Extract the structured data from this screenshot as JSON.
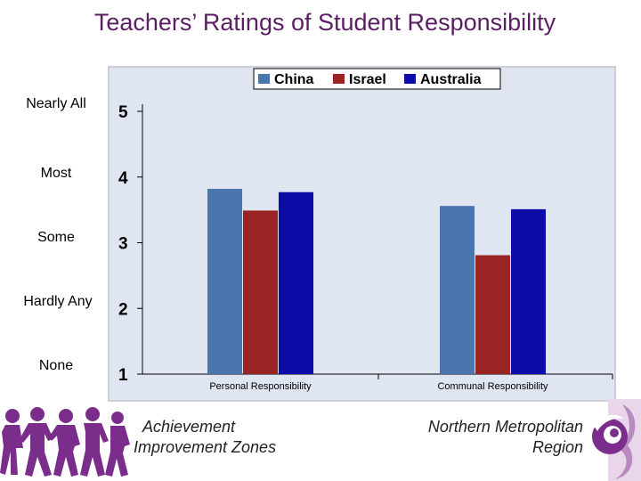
{
  "title": "Teachers’ Ratings of Student Responsibility",
  "rating_labels": [
    "Nearly All",
    "Most",
    "Some",
    "Hardly Any",
    "None"
  ],
  "footer": {
    "left_line1": "Achievement",
    "left_line2": "Improvement Zones",
    "right_line1": "Northern Metropolitan",
    "right_line2": "Region"
  },
  "colors": {
    "title": "#5a1e63",
    "plot_background": "#dfe6f2",
    "china": "#4a76ad",
    "israel": "#9a2424",
    "australia": "#0c0ca8"
  },
  "chart_data": {
    "type": "bar",
    "title": "",
    "xlabel": "",
    "ylabel": "",
    "categories": [
      "Personal Responsibility",
      "Communal Responsibility"
    ],
    "series": [
      {
        "name": "China",
        "values": [
          3.82,
          3.56
        ]
      },
      {
        "name": "Israel",
        "values": [
          3.49,
          2.81
        ]
      },
      {
        "name": "Australia",
        "values": [
          3.77,
          3.51
        ]
      }
    ],
    "yticks": [
      5,
      4,
      3,
      2,
      1
    ],
    "ylim": [
      1,
      5
    ],
    "grid": false,
    "legend": "top"
  }
}
